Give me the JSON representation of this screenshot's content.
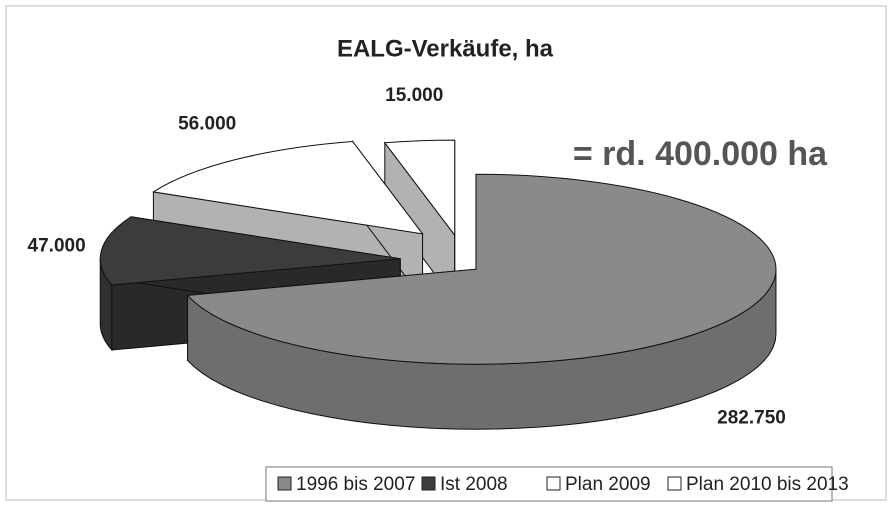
{
  "chart_data": {
    "type": "pie3d",
    "title": "EALG-Verkäufe, ha",
    "annotation": "= rd. 400.000 ha",
    "categories": [
      "1996 bis 2007",
      "Ist 2008",
      "Plan 2009",
      "Plan 2010 bis 2013"
    ],
    "values": [
      282750,
      47000,
      56000,
      15000
    ],
    "value_labels": [
      "282.750",
      "47.000",
      "56.000",
      "15.000"
    ],
    "colors": [
      "#8a8a8a",
      "#3c3c3c",
      "#ffffff",
      "#ffffff"
    ],
    "legend": "bottom"
  }
}
